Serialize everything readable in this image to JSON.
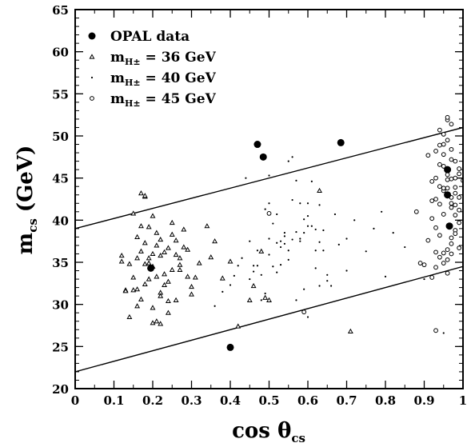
{
  "chart_data": {
    "type": "scatter",
    "title": "",
    "xlabel": "cos θ",
    "xlabel_sub": "cs",
    "ylabel": "m",
    "ylabel_sub": "cs",
    "ylabel_unit": "(GeV)",
    "xlim": [
      0,
      1
    ],
    "ylim": [
      20,
      65
    ],
    "x_ticks": [
      0,
      0.1,
      0.2,
      0.3,
      0.4,
      0.5,
      0.6,
      0.7,
      0.8,
      0.9,
      1
    ],
    "x_tick_labels": [
      "0",
      "0.1",
      "0.2",
      "0.3",
      "0.4",
      "0.5",
      "0.6",
      "0.7",
      "0.8",
      "0.9",
      "1"
    ],
    "y_ticks": [
      20,
      25,
      30,
      35,
      40,
      45,
      50,
      55,
      60,
      65
    ],
    "y_tick_labels": [
      "20",
      "25",
      "30",
      "35",
      "40",
      "45",
      "50",
      "55",
      "60",
      "65"
    ],
    "legend_position": "top-left",
    "legend": [
      {
        "marker": "filled-circle",
        "label": "OPAL data"
      },
      {
        "marker": "triangle",
        "label": "m",
        "sub": "H±",
        "suffix": " = 36 GeV"
      },
      {
        "marker": "dot",
        "label": "m",
        "sub": "H±",
        "suffix": " = 40 GeV"
      },
      {
        "marker": "open-circle",
        "label": "m",
        "sub": "H±",
        "suffix": " = 45 GeV"
      }
    ],
    "lines": [
      {
        "x": [
          0,
          1
        ],
        "y": [
          39,
          51
        ]
      },
      {
        "x": [
          0,
          1
        ],
        "y": [
          22,
          34.5
        ]
      }
    ],
    "series": [
      {
        "name": "OPAL data",
        "marker": "filled-circle",
        "x": [
          0.195,
          0.47,
          0.485,
          0.685,
          0.4,
          0.965,
          0.96,
          0.96
        ],
        "y": [
          34.3,
          49.0,
          47.5,
          49.2,
          24.9,
          39.3,
          46.0,
          43.0
        ]
      },
      {
        "name": "m_H± = 36 GeV",
        "marker": "triangle",
        "x": [
          0.12,
          0.13,
          0.14,
          0.15,
          0.16,
          0.16,
          0.17,
          0.18,
          0.18,
          0.19,
          0.19,
          0.2,
          0.2,
          0.21,
          0.21,
          0.22,
          0.22,
          0.23,
          0.24,
          0.25,
          0.26,
          0.27,
          0.28,
          0.29,
          0.3,
          0.31,
          0.32,
          0.14,
          0.15,
          0.16,
          0.17,
          0.18,
          0.19,
          0.2,
          0.21,
          0.22,
          0.23,
          0.24,
          0.25,
          0.26,
          0.27,
          0.28,
          0.29,
          0.15,
          0.16,
          0.17,
          0.18,
          0.2,
          0.22,
          0.24,
          0.26,
          0.3,
          0.35,
          0.38,
          0.4,
          0.42,
          0.45,
          0.46,
          0.48,
          0.49,
          0.5,
          0.63,
          0.71,
          0.2,
          0.21,
          0.22,
          0.23,
          0.25,
          0.27,
          0.18,
          0.17,
          0.34,
          0.36,
          0.12,
          0.13,
          0.24,
          0.19
        ],
        "y": [
          35.8,
          31.7,
          34.8,
          33.2,
          35.5,
          31.8,
          36.3,
          34.8,
          37.3,
          35.5,
          33.0,
          36.0,
          34.5,
          33.3,
          37.0,
          31.4,
          35.8,
          33.6,
          32.7,
          34.1,
          35.9,
          34.1,
          36.8,
          33.3,
          32.1,
          33.2,
          34.9,
          28.5,
          40.8,
          38.0,
          43.2,
          42.8,
          39.2,
          40.5,
          38.5,
          37.7,
          36.2,
          36.7,
          38.3,
          37.6,
          35.5,
          38.9,
          36.5,
          31.7,
          29.8,
          30.6,
          32.4,
          29.6,
          27.7,
          29.0,
          30.5,
          31.2,
          35.6,
          33.1,
          35.1,
          27.4,
          30.5,
          32.2,
          36.3,
          30.8,
          30.5,
          43.5,
          26.8,
          27.8,
          28.0,
          31.0,
          32.3,
          39.7,
          34.7,
          42.9,
          39.3,
          39.3,
          37.5,
          35.1,
          31.6,
          30.4,
          34.9
        ]
      },
      {
        "name": "m_H± = 40 GeV",
        "marker": "dot",
        "x": [
          0.44,
          0.45,
          0.46,
          0.47,
          0.48,
          0.49,
          0.5,
          0.5,
          0.51,
          0.52,
          0.52,
          0.53,
          0.54,
          0.55,
          0.55,
          0.56,
          0.57,
          0.58,
          0.59,
          0.6,
          0.6,
          0.61,
          0.62,
          0.62,
          0.63,
          0.64,
          0.65,
          0.66,
          0.67,
          0.68,
          0.7,
          0.72,
          0.75,
          0.77,
          0.79,
          0.8,
          0.82,
          0.85,
          0.55,
          0.56,
          0.57,
          0.58,
          0.59,
          0.6,
          0.61,
          0.62,
          0.63,
          0.64,
          0.5,
          0.51,
          0.52,
          0.53,
          0.54,
          0.49,
          0.48,
          0.47,
          0.46,
          0.45,
          0.43,
          0.42,
          0.41,
          0.4,
          0.38,
          0.36,
          0.58,
          0.59,
          0.57,
          0.6,
          0.63,
          0.65,
          0.7,
          0.9,
          0.95,
          0.56,
          0.54,
          0.53,
          0.5
        ],
        "y": [
          45.0,
          37.5,
          34.6,
          36.4,
          33.5,
          41.3,
          42.0,
          45.3,
          39.6,
          37.3,
          40.7,
          36.8,
          37.2,
          36.4,
          35.3,
          42.4,
          38.6,
          37.8,
          38.5,
          39.3,
          42.0,
          44.6,
          36.4,
          34.3,
          41.8,
          38.8,
          33.5,
          32.2,
          40.7,
          37.1,
          37.8,
          40.0,
          36.3,
          39.0,
          41.0,
          33.3,
          38.5,
          36.8,
          47.0,
          47.5,
          44.7,
          42.0,
          40.1,
          40.5,
          39.3,
          38.9,
          37.4,
          36.4,
          35.9,
          34.5,
          33.8,
          34.7,
          38.5,
          31.3,
          30.5,
          34.6,
          33.9,
          33.0,
          35.5,
          34.6,
          33.4,
          32.3,
          31.5,
          29.8,
          37.5,
          31.8,
          30.5,
          28.5,
          32.2,
          32.8,
          34.0,
          33.0,
          26.6,
          37.7,
          38.1,
          37.5,
          37.8
        ]
      },
      {
        "name": "m_H± = 45 GeV",
        "marker": "open-circle",
        "x": [
          0.88,
          0.89,
          0.9,
          0.91,
          0.92,
          0.92,
          0.93,
          0.93,
          0.94,
          0.94,
          0.95,
          0.95,
          0.96,
          0.96,
          0.97,
          0.97,
          0.97,
          0.98,
          0.98,
          0.99,
          0.99,
          1.0,
          0.91,
          0.92,
          0.93,
          0.94,
          0.95,
          0.96,
          0.97,
          0.98,
          0.99,
          0.92,
          0.93,
          0.94,
          0.95,
          0.96,
          0.97,
          0.98,
          0.93,
          0.94,
          0.95,
          0.96,
          0.97,
          0.98,
          0.99,
          0.95,
          0.96,
          0.97,
          0.93,
          0.95,
          0.94,
          0.96,
          0.97,
          0.98,
          0.99,
          0.99,
          0.96,
          0.97,
          0.94,
          0.95,
          0.96,
          0.97,
          0.98,
          0.98,
          0.59,
          0.5,
          0.93,
          0.95
        ],
        "y": [
          41.0,
          34.9,
          34.7,
          47.7,
          44.6,
          42.3,
          45.0,
          42.5,
          46.6,
          44.0,
          43.5,
          46.4,
          45.4,
          43.8,
          42.7,
          44.9,
          47.2,
          43.9,
          41.8,
          45.5,
          42.7,
          44.7,
          37.6,
          40.2,
          39.1,
          38.2,
          36.1,
          35.3,
          37.2,
          38.8,
          36.7,
          33.2,
          34.4,
          35.6,
          34.9,
          33.7,
          36.0,
          38.4,
          48.2,
          48.9,
          47.8,
          49.5,
          48.4,
          47.0,
          46.1,
          50.2,
          51.9,
          51.4,
          26.9,
          49.0,
          50.7,
          52.2,
          41.5,
          40.6,
          39.7,
          41.2,
          44.8,
          42.0,
          41.9,
          40.7,
          36.5,
          37.9,
          43.2,
          45.0,
          29.1,
          40.8,
          36.2,
          43.8
        ]
      }
    ]
  }
}
